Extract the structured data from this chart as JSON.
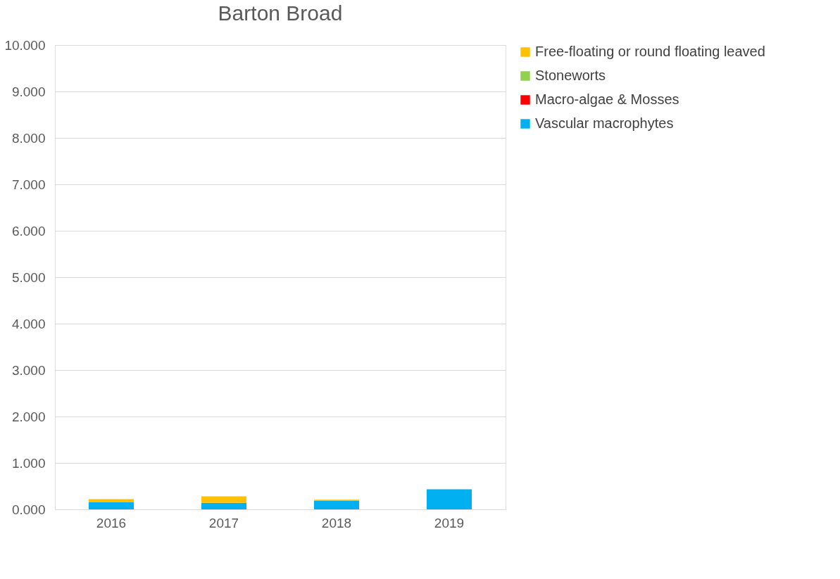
{
  "chart_data": {
    "type": "bar",
    "title": "Barton Broad",
    "categories": [
      "2016",
      "2017",
      "2018",
      "2019"
    ],
    "stacked": true,
    "series": [
      {
        "name": "Vascular macrophytes",
        "color": "#00b0f0",
        "values": [
          0.16,
          0.14,
          0.18,
          0.43
        ]
      },
      {
        "name": "Macro-algae & Mosses",
        "color": "#ff0000",
        "values": [
          null,
          0,
          0,
          0
        ]
      },
      {
        "name": "Stoneworts",
        "color": "#92d050",
        "values": [
          0,
          0,
          0,
          0
        ]
      },
      {
        "name": "Free-floating or round floating leaved",
        "color": "#ffc000",
        "values": [
          0.06,
          0.14,
          0.03,
          0
        ]
      }
    ],
    "ylim": [
      0,
      10
    ],
    "yticks": [
      {
        "value": 0,
        "label": "0.000"
      },
      {
        "value": 1,
        "label": "1.000"
      },
      {
        "value": 2,
        "label": "2.000"
      },
      {
        "value": 3,
        "label": "3.000"
      },
      {
        "value": 4,
        "label": "4.000"
      },
      {
        "value": 5,
        "label": "5.000"
      },
      {
        "value": 6,
        "label": "6.000"
      },
      {
        "value": 7,
        "label": "7.000"
      },
      {
        "value": 8,
        "label": "8.000"
      },
      {
        "value": 9,
        "label": "9.000"
      },
      {
        "value": 10,
        "label": "10.000"
      }
    ],
    "grid": "y",
    "legend": "right"
  }
}
